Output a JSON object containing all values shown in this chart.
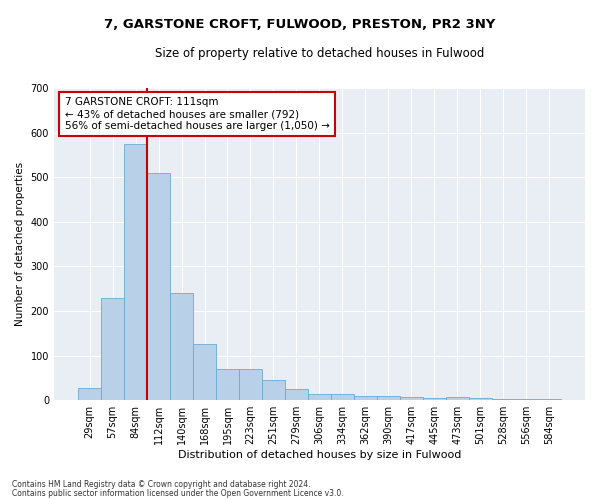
{
  "title1": "7, GARSTONE CROFT, FULWOOD, PRESTON, PR2 3NY",
  "title2": "Size of property relative to detached houses in Fulwood",
  "xlabel": "Distribution of detached houses by size in Fulwood",
  "ylabel": "Number of detached properties",
  "categories": [
    "29sqm",
    "57sqm",
    "84sqm",
    "112sqm",
    "140sqm",
    "168sqm",
    "195sqm",
    "223sqm",
    "251sqm",
    "279sqm",
    "306sqm",
    "334sqm",
    "362sqm",
    "390sqm",
    "417sqm",
    "445sqm",
    "473sqm",
    "501sqm",
    "528sqm",
    "556sqm",
    "584sqm"
  ],
  "values": [
    28,
    230,
    575,
    510,
    240,
    125,
    70,
    70,
    45,
    25,
    15,
    13,
    10,
    10,
    8,
    5,
    8,
    5,
    2,
    2,
    3
  ],
  "bar_color": "#b8d0e8",
  "bar_edge_color": "#6aaad4",
  "background_color": "#e8eef4",
  "vline_color": "#cc0000",
  "annotation_text": "7 GARSTONE CROFT: 111sqm\n← 43% of detached houses are smaller (792)\n56% of semi-detached houses are larger (1,050) →",
  "annotation_box_color": "#ffffff",
  "annotation_box_edge": "#cc0000",
  "ylim": [
    0,
    700
  ],
  "yticks": [
    0,
    100,
    200,
    300,
    400,
    500,
    600,
    700
  ],
  "footnote1": "Contains HM Land Registry data © Crown copyright and database right 2024.",
  "footnote2": "Contains public sector information licensed under the Open Government Licence v3.0."
}
